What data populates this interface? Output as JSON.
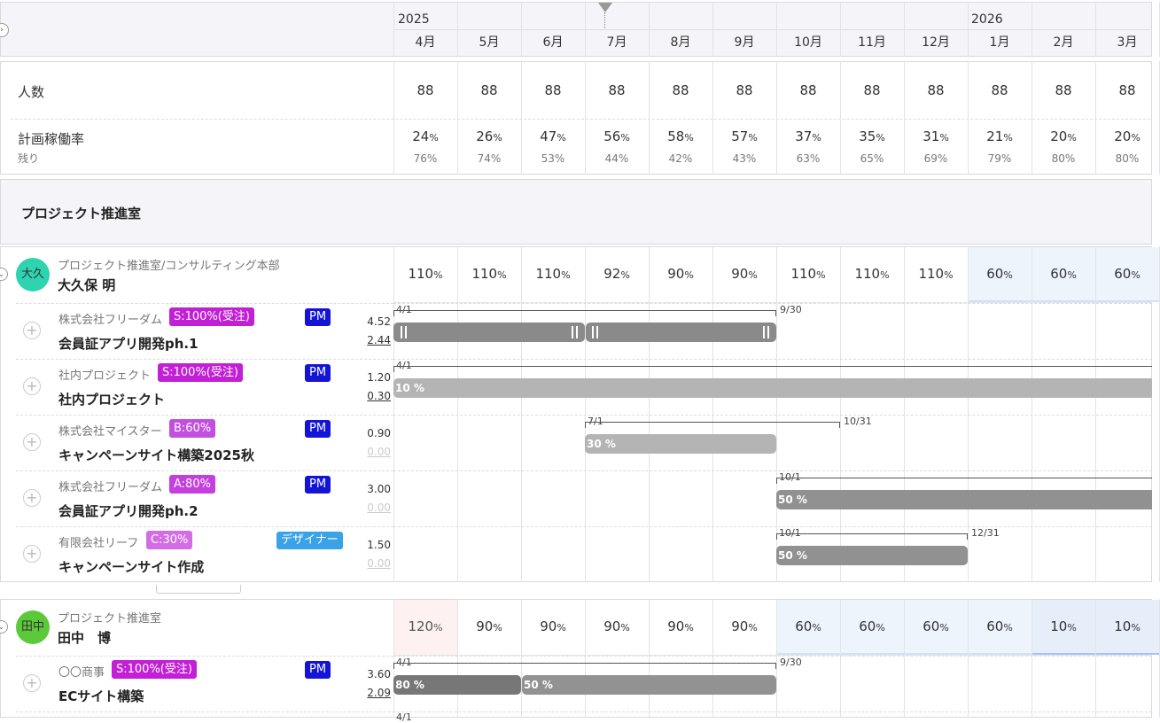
{
  "timeline": {
    "year_start": "2025",
    "year_end": "2026",
    "months": [
      "4月",
      "5月",
      "6月",
      "7月",
      "8月",
      "9月",
      "10月",
      "11月",
      "12月",
      "1月",
      "2月",
      "3月"
    ]
  },
  "summary": {
    "headcount_label": "人数",
    "headcount": [
      "88",
      "88",
      "88",
      "88",
      "88",
      "88",
      "88",
      "88",
      "88",
      "88",
      "88",
      "88"
    ],
    "rate_label": "計画稼働率",
    "remaining_label": "残り",
    "rate": [
      "24",
      "26",
      "47",
      "56",
      "58",
      "57",
      "37",
      "35",
      "31",
      "21",
      "20",
      "20"
    ],
    "remaining": [
      "76%",
      "74%",
      "53%",
      "44%",
      "42%",
      "43%",
      "63%",
      "65%",
      "69%",
      "79%",
      "80%",
      "80%"
    ],
    "pct_sign": "%"
  },
  "department": {
    "name": "プロジェクト推進室"
  },
  "members": [
    {
      "avatar": "大久",
      "avatar_color": "#2ed3b0",
      "dept": "プロジェクト推進室/コンサルティング本部",
      "name": "大久保 明",
      "util": [
        "110",
        "110",
        "110",
        "92",
        "90",
        "90",
        "110",
        "110",
        "110",
        "60",
        "60",
        "60"
      ],
      "projects": [
        {
          "client": "株式会社フリーダム",
          "status": "S:100%(受注)",
          "status_color": "#c21fd6",
          "role": "PM",
          "role_color": "#1414d6",
          "name": "会員証アプリ開発ph.1",
          "v1": "4.52",
          "v2": "2.44",
          "v2_active": true,
          "start": "4/1",
          "end": "9/30",
          "bar_labels": []
        },
        {
          "client": "社内プロジェクト",
          "status": "S:100%(受注)",
          "status_color": "#c21fd6",
          "role": "PM",
          "role_color": "#1414d6",
          "name": "社内プロジェクト",
          "v1": "1.20",
          "v2": "0.30",
          "v2_active": true,
          "start": "4/1",
          "end": "",
          "bar_labels": [
            "10 %"
          ]
        },
        {
          "client": "株式会社マイスター",
          "status": "B:60%",
          "status_color": "#c24fe0",
          "role": "PM",
          "role_color": "#1414d6",
          "name": "キャンペーンサイト構築2025秋",
          "v1": "0.90",
          "v2": "0.00",
          "v2_active": false,
          "start": "7/1",
          "end": "10/31",
          "bar_labels": [
            "30 %"
          ]
        },
        {
          "client": "株式会社フリーダム",
          "status": "A:80%",
          "status_color": "#c43ee0",
          "role": "PM",
          "role_color": "#1414d6",
          "name": "会員証アプリ開発ph.2",
          "v1": "3.00",
          "v2": "0.00",
          "v2_active": false,
          "start": "10/1",
          "end": "",
          "bar_labels": [
            "50 %"
          ]
        },
        {
          "client": "有限会社リーフ",
          "status": "C:30%",
          "status_color": "#d36ce6",
          "role": "デザイナー",
          "role_color": "#3aa2e6",
          "name": "キャンペーンサイト作成",
          "v1": "1.50",
          "v2": "0.00",
          "v2_active": false,
          "start": "10/1",
          "end": "12/31",
          "bar_labels": [
            "50 %"
          ]
        }
      ]
    },
    {
      "avatar": "田中",
      "avatar_color": "#5cc93a",
      "dept": "プロジェクト推進室",
      "name": "田中　博",
      "util": [
        "120",
        "90",
        "90",
        "90",
        "90",
        "90",
        "60",
        "60",
        "60",
        "60",
        "10",
        "10"
      ],
      "projects": [
        {
          "client": "〇〇商事",
          "status": "S:100%(受注)",
          "status_color": "#c21fd6",
          "role": "PM",
          "role_color": "#1414d6",
          "name": "ECサイト構築",
          "v1": "3.60",
          "v2": "2.09",
          "v2_active": true,
          "start": "4/1",
          "end": "9/30",
          "bar_labels": [
            "80 %",
            "50 %"
          ]
        }
      ]
    }
  ],
  "trailing_period_label": "4/1"
}
